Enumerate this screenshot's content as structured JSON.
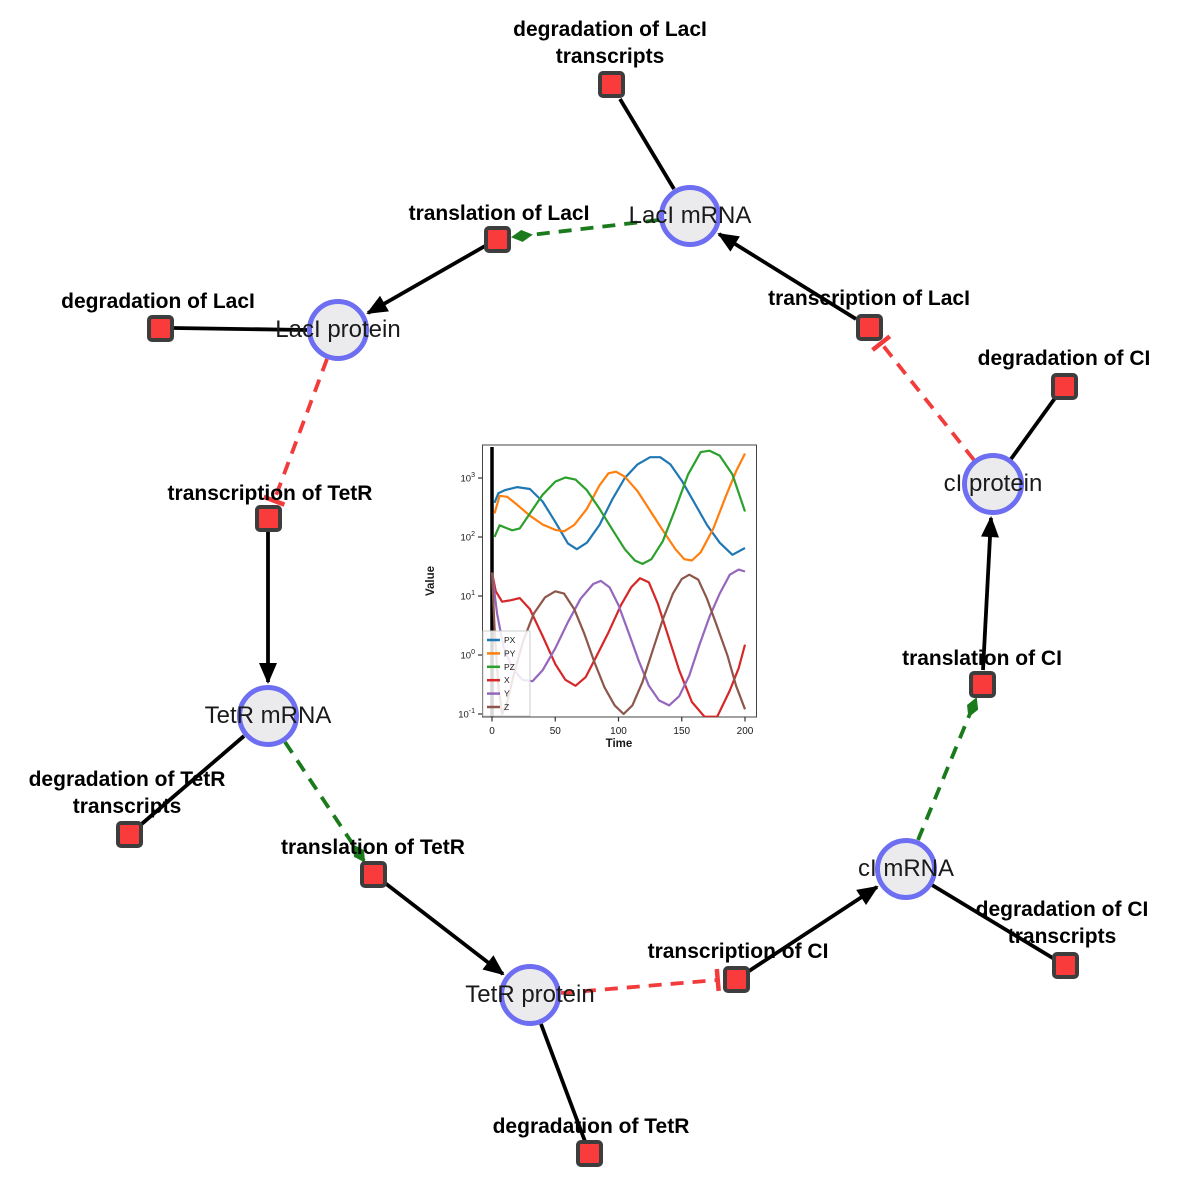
{
  "diagram": {
    "colors": {
      "species_fill": "#ebebee",
      "species_border": "#6e6ef2",
      "reaction_fill": "#f93b3b",
      "reaction_border": "#3d3d3d",
      "activation_edge": "#1b7a1b",
      "inhibition_edge": "#f23c3c",
      "default_edge": "#000000"
    },
    "species": [
      {
        "id": "laci-mrna",
        "label": "LacI mRNA"
      },
      {
        "id": "laci-protein",
        "label": "LacI protein"
      },
      {
        "id": "ci-protein",
        "label": "cI protein"
      },
      {
        "id": "tetr-mrna",
        "label": "TetR mRNA"
      },
      {
        "id": "ci-mrna",
        "label": "cI mRNA"
      },
      {
        "id": "tetr-protein",
        "label": "TetR protein"
      }
    ],
    "reactions": [
      {
        "id": "degradation-of-laci-transcripts",
        "lines": [
          "degradation of LacI",
          "transcripts"
        ]
      },
      {
        "id": "translation-of-laci",
        "lines": [
          "translation of LacI"
        ]
      },
      {
        "id": "degradation-of-laci",
        "lines": [
          "degradation of LacI"
        ]
      },
      {
        "id": "transcription-of-laci",
        "lines": [
          "transcription of LacI"
        ]
      },
      {
        "id": "degradation-of-ci",
        "lines": [
          "degradation of CI"
        ]
      },
      {
        "id": "transcription-of-tetr",
        "lines": [
          "transcription of TetR"
        ]
      },
      {
        "id": "translation-of-ci",
        "lines": [
          "translation of CI"
        ]
      },
      {
        "id": "degradation-of-tetr-transcripts",
        "lines": [
          "degradation of TetR",
          "transcripts"
        ]
      },
      {
        "id": "translation-of-tetr",
        "lines": [
          "translation of TetR"
        ]
      },
      {
        "id": "degradation-of-ci-transcripts",
        "lines": [
          "degradation of CI",
          "transcripts"
        ]
      },
      {
        "id": "transcription-of-ci",
        "lines": [
          "transcription of CI"
        ]
      },
      {
        "id": "degradation-of-tetr",
        "lines": [
          "degradation of TetR"
        ]
      }
    ]
  },
  "chart_data": {
    "type": "line",
    "title": "",
    "xlabel": "Time",
    "ylabel": "Value",
    "x_range": [
      0,
      200
    ],
    "xticks": [
      0,
      50,
      100,
      150,
      200
    ],
    "y_scale": "log",
    "ytick_exponents": [
      3,
      2,
      1,
      0,
      -1
    ],
    "y_range": [
      "1e-1",
      "1e3"
    ],
    "axvline_x": 0,
    "legend_position": "lower left",
    "grid": false,
    "series": [
      {
        "name": "PX",
        "color": "#1f77b4",
        "points": [
          [
            2,
            380
          ],
          [
            5,
            550
          ],
          [
            10,
            620
          ],
          [
            20,
            700
          ],
          [
            30,
            650
          ],
          [
            40,
            400
          ],
          [
            50,
            180
          ],
          [
            60,
            78
          ],
          [
            67,
            62
          ],
          [
            75,
            80
          ],
          [
            85,
            160
          ],
          [
            95,
            430
          ],
          [
            105,
            1000
          ],
          [
            115,
            1700
          ],
          [
            125,
            2250
          ],
          [
            133,
            2250
          ],
          [
            141,
            1700
          ],
          [
            150,
            900
          ],
          [
            160,
            380
          ],
          [
            170,
            160
          ],
          [
            180,
            80
          ],
          [
            190,
            50
          ],
          [
            200,
            65
          ]
        ]
      },
      {
        "name": "PY",
        "color": "#ff7f0e",
        "points": [
          [
            2,
            250
          ],
          [
            6,
            500
          ],
          [
            12,
            480
          ],
          [
            20,
            350
          ],
          [
            30,
            230
          ],
          [
            40,
            163
          ],
          [
            50,
            132
          ],
          [
            57,
            125
          ],
          [
            65,
            160
          ],
          [
            75,
            300
          ],
          [
            85,
            750
          ],
          [
            92,
            1200
          ],
          [
            98,
            1280
          ],
          [
            105,
            1050
          ],
          [
            115,
            600
          ],
          [
            125,
            280
          ],
          [
            135,
            130
          ],
          [
            145,
            62
          ],
          [
            152,
            42
          ],
          [
            158,
            40
          ],
          [
            165,
            55
          ],
          [
            175,
            140
          ],
          [
            185,
            500
          ],
          [
            193,
            1300
          ],
          [
            200,
            2600
          ]
        ]
      },
      {
        "name": "PZ",
        "color": "#2ca02c",
        "points": [
          [
            2,
            100
          ],
          [
            6,
            158
          ],
          [
            12,
            140
          ],
          [
            16,
            130
          ],
          [
            22,
            140
          ],
          [
            30,
            250
          ],
          [
            40,
            520
          ],
          [
            50,
            870
          ],
          [
            58,
            1020
          ],
          [
            66,
            940
          ],
          [
            75,
            620
          ],
          [
            85,
            300
          ],
          [
            95,
            135
          ],
          [
            105,
            62
          ],
          [
            113,
            40
          ],
          [
            119,
            35
          ],
          [
            126,
            42
          ],
          [
            135,
            85
          ],
          [
            145,
            300
          ],
          [
            155,
            1150
          ],
          [
            165,
            2750
          ],
          [
            172,
            2900
          ],
          [
            180,
            2400
          ],
          [
            190,
            1150
          ],
          [
            200,
            270
          ]
        ]
      },
      {
        "name": "X",
        "color": "#d62728",
        "points": [
          [
            0,
            25
          ],
          [
            3,
            12
          ],
          [
            8,
            8
          ],
          [
            15,
            8.5
          ],
          [
            22,
            9.2
          ],
          [
            30,
            6
          ],
          [
            40,
            2.1
          ],
          [
            50,
            0.7
          ],
          [
            58,
            0.38
          ],
          [
            66,
            0.3
          ],
          [
            74,
            0.42
          ],
          [
            82,
            0.9
          ],
          [
            92,
            2.4
          ],
          [
            102,
            7
          ],
          [
            110,
            14
          ],
          [
            117,
            20
          ],
          [
            124,
            17
          ],
          [
            131,
            7.5
          ],
          [
            139,
            2.2
          ],
          [
            148,
            0.55
          ],
          [
            158,
            0.16
          ],
          [
            168,
            0.09
          ],
          [
            178,
            0.09
          ],
          [
            188,
            0.25
          ],
          [
            195,
            0.6
          ],
          [
            200,
            1.5
          ]
        ]
      },
      {
        "name": "Y",
        "color": "#9467bd",
        "points": [
          [
            0,
            25
          ],
          [
            4,
            5
          ],
          [
            9,
            1.4
          ],
          [
            16,
            0.6
          ],
          [
            24,
            0.38
          ],
          [
            32,
            0.36
          ],
          [
            40,
            0.55
          ],
          [
            50,
            1.3
          ],
          [
            60,
            3.6
          ],
          [
            70,
            9
          ],
          [
            80,
            16
          ],
          [
            86,
            18
          ],
          [
            93,
            14
          ],
          [
            100,
            7
          ],
          [
            108,
            2.4
          ],
          [
            116,
            0.8
          ],
          [
            124,
            0.3
          ],
          [
            132,
            0.17
          ],
          [
            140,
            0.14
          ],
          [
            148,
            0.2
          ],
          [
            156,
            0.45
          ],
          [
            164,
            1.5
          ],
          [
            172,
            4.5
          ],
          [
            180,
            11
          ],
          [
            188,
            23
          ],
          [
            195,
            28
          ],
          [
            200,
            26
          ]
        ]
      },
      {
        "name": "Z",
        "color": "#8c564b",
        "points": [
          [
            0,
            25
          ],
          [
            2,
            3
          ],
          [
            5,
            0.3
          ],
          [
            8,
            0.1
          ],
          [
            12,
            0.16
          ],
          [
            18,
            0.55
          ],
          [
            25,
            1.8
          ],
          [
            33,
            5
          ],
          [
            42,
            9.5
          ],
          [
            50,
            12
          ],
          [
            57,
            11
          ],
          [
            65,
            6
          ],
          [
            73,
            2.3
          ],
          [
            81,
            0.75
          ],
          [
            89,
            0.28
          ],
          [
            97,
            0.14
          ],
          [
            104,
            0.1
          ],
          [
            111,
            0.14
          ],
          [
            119,
            0.35
          ],
          [
            127,
            1.2
          ],
          [
            135,
            4
          ],
          [
            143,
            11
          ],
          [
            150,
            19.5
          ],
          [
            156,
            23
          ],
          [
            163,
            19
          ],
          [
            170,
            9
          ],
          [
            178,
            3
          ],
          [
            186,
            1
          ],
          [
            193,
            0.3
          ],
          [
            200,
            0.12
          ]
        ]
      }
    ]
  }
}
